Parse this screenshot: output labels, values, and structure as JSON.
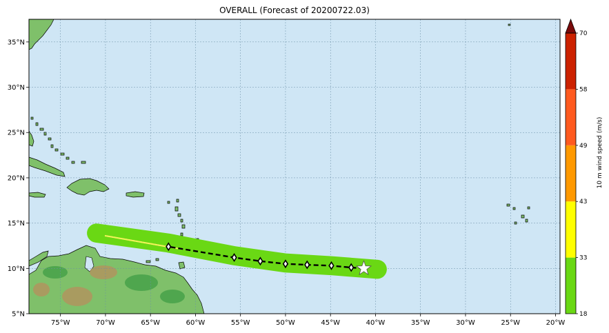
{
  "title": "OVERALL (Forecast of 20200722.03)",
  "colors": {
    "ocean": "#cfe6f5",
    "gridline": "#6a8fa6",
    "swath_green": "#6ad814",
    "swath_yellow": "#f3f35a",
    "track": "#000000",
    "land_low": "#3f9e45",
    "land_mid": "#7fc06a",
    "land_high": "#b78f5e",
    "coast": "#000000"
  },
  "map": {
    "projection": "PlateCarree",
    "lon_range": [
      -78.5,
      -19.5
    ],
    "lat_range": [
      5,
      37.5
    ],
    "x_ticks": [
      {
        "lon": -75,
        "label": "75°W"
      },
      {
        "lon": -70,
        "label": "70°W"
      },
      {
        "lon": -65,
        "label": "65°W"
      },
      {
        "lon": -60,
        "label": "60°W"
      },
      {
        "lon": -55,
        "label": "55°W"
      },
      {
        "lon": -50,
        "label": "50°W"
      },
      {
        "lon": -45,
        "label": "45°W"
      },
      {
        "lon": -40,
        "label": "40°W"
      },
      {
        "lon": -35,
        "label": "35°W"
      },
      {
        "lon": -30,
        "label": "30°W"
      },
      {
        "lon": -25,
        "label": "25°W"
      },
      {
        "lon": -20,
        "label": "20°W"
      }
    ],
    "y_ticks": [
      {
        "lat": 5,
        "label": "5°N"
      },
      {
        "lat": 10,
        "label": "10°N"
      },
      {
        "lat": 15,
        "label": "15°N"
      },
      {
        "lat": 20,
        "label": "20°N"
      },
      {
        "lat": 25,
        "label": "25°N"
      },
      {
        "lat": 30,
        "label": "30°N"
      },
      {
        "lat": 35,
        "label": "35°N"
      }
    ],
    "grid": true
  },
  "track": {
    "current_position": {
      "lon": -41.3,
      "lat": 10.0
    },
    "forecast_points": [
      {
        "lon": -42.7,
        "lat": 10.1
      },
      {
        "lon": -44.9,
        "lat": 10.3
      },
      {
        "lon": -47.6,
        "lat": 10.4
      },
      {
        "lon": -50.0,
        "lat": 10.5
      },
      {
        "lon": -52.8,
        "lat": 10.8
      },
      {
        "lon": -55.7,
        "lat": 11.2
      },
      {
        "lon": -63.0,
        "lat": 12.4
      }
    ],
    "swath_path": [
      {
        "lon": -71.0,
        "lat": 13.9
      },
      {
        "lon": -63.0,
        "lat": 12.8
      },
      {
        "lon": -55.7,
        "lat": 11.4
      },
      {
        "lon": -50.0,
        "lat": 10.6
      },
      {
        "lon": -44.9,
        "lat": 10.3
      },
      {
        "lon": -39.8,
        "lat": 9.9
      }
    ],
    "swath_width_deg": 1.4,
    "yellow_segment": [
      {
        "lon": -70.0,
        "lat": 13.6
      },
      {
        "lon": -62.0,
        "lat": 12.2
      }
    ]
  },
  "colorbar": {
    "label": "10 m wind speed (m/s)",
    "levels": [
      {
        "value": 18,
        "label": "18",
        "color": "#6ad814"
      },
      {
        "value": 33,
        "label": "33",
        "color": "#ffff00"
      },
      {
        "value": 43,
        "label": "43",
        "color": "#ff9900"
      },
      {
        "value": 49,
        "label": "49",
        "color": "#ff5a1f"
      },
      {
        "value": 58,
        "label": "58",
        "color": "#cc2200"
      },
      {
        "value": 70,
        "label": "70",
        "color": "#7a0a0a"
      }
    ],
    "extend": "max"
  }
}
